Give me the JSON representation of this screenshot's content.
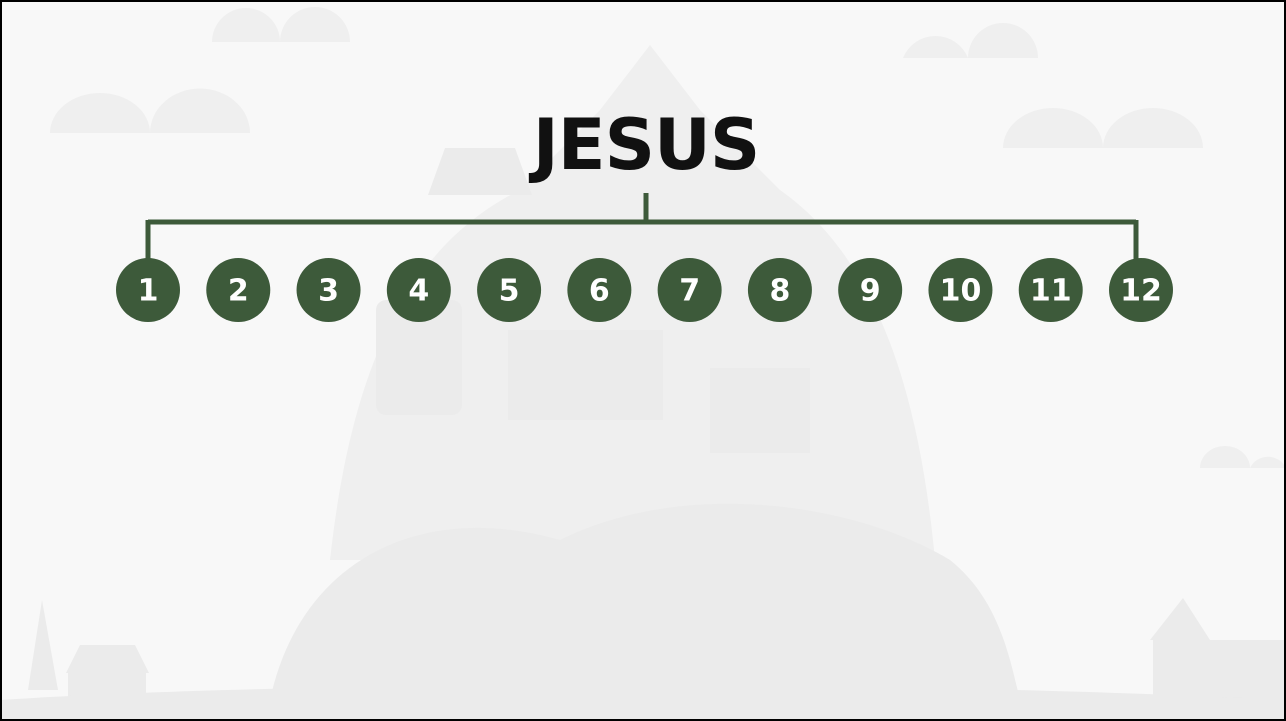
{
  "title": "JESUS",
  "nodes": [
    {
      "label": "1"
    },
    {
      "label": "2"
    },
    {
      "label": "3"
    },
    {
      "label": "4"
    },
    {
      "label": "5"
    },
    {
      "label": "6"
    },
    {
      "label": "7"
    },
    {
      "label": "8"
    },
    {
      "label": "9"
    },
    {
      "label": "10"
    },
    {
      "label": "11"
    },
    {
      "label": "12"
    }
  ]
}
